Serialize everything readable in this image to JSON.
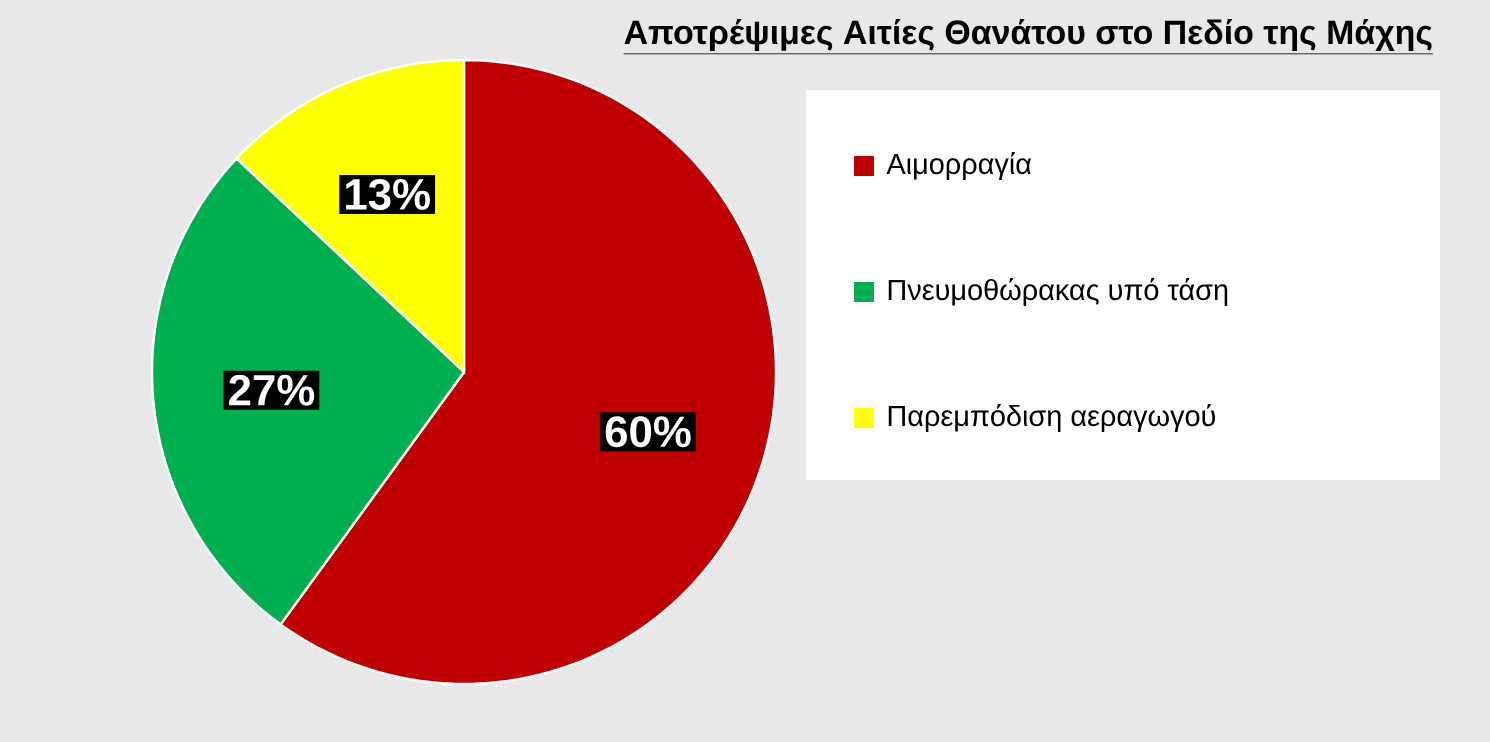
{
  "chart_data": {
    "type": "pie",
    "title": "Αποτρέψιμες Αιτίες Θανάτου στο Πεδίο της Μάχης",
    "categories": [
      "Αιμορραγία",
      "Πνευμοθώρακας υπό τάση",
      "Παρεμπόδιση αεραγωγού"
    ],
    "values": [
      60,
      27,
      13
    ],
    "colors": [
      "#c00000",
      "#00b050",
      "#ffff00"
    ],
    "value_labels": [
      "60%",
      "27%",
      "13%"
    ],
    "legend": "right"
  }
}
